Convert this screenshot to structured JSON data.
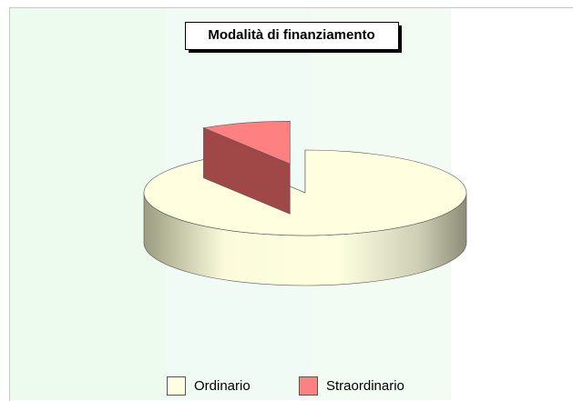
{
  "chart_data": {
    "type": "pie",
    "title": "Modalità di finanziamento",
    "categories": [
      "Ordinario",
      "Straordinario"
    ],
    "values": [
      91,
      9
    ],
    "colors": [
      "#ffffe0",
      "#ff8080"
    ],
    "legend": "bottom"
  }
}
